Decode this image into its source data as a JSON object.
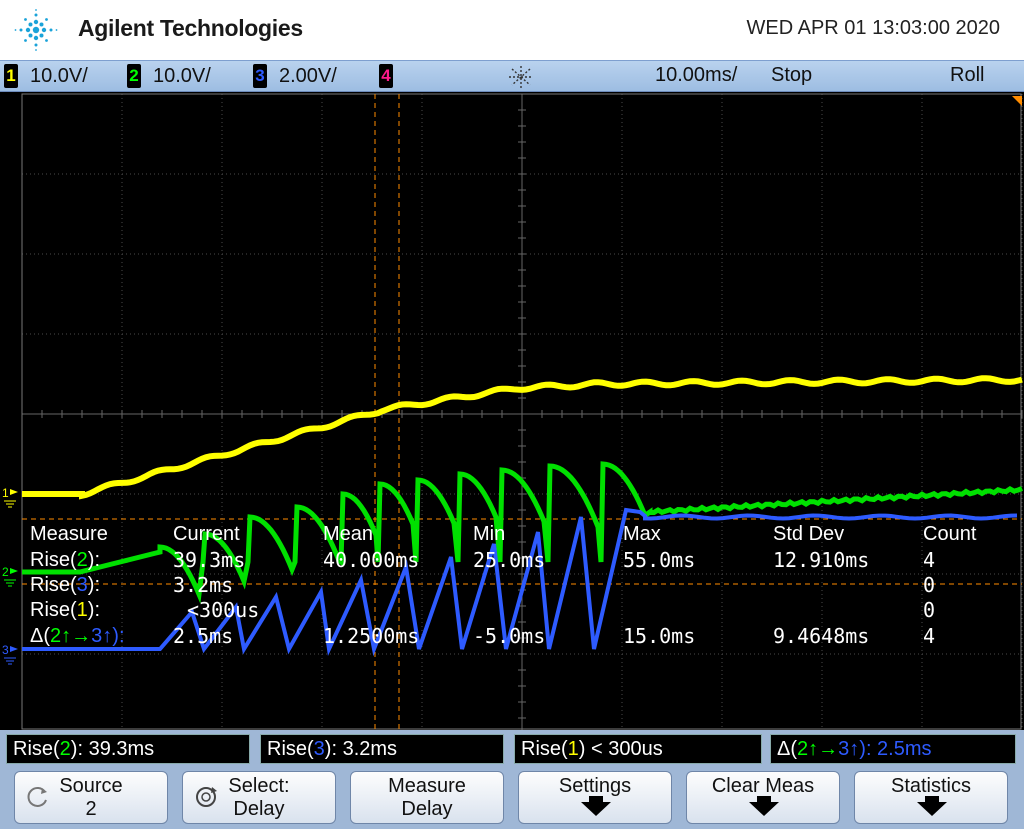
{
  "header": {
    "brand": "Agilent Technologies",
    "datetime": "WED APR 01 13:03:00 2020"
  },
  "status_bar": {
    "channels": [
      {
        "num": "1",
        "scale": "10.0V/",
        "color": "#ffff00"
      },
      {
        "num": "2",
        "scale": "10.0V/",
        "color": "#00ff00"
      },
      {
        "num": "3",
        "scale": "2.00V/",
        "color": "#2e5bff"
      },
      {
        "num": "4",
        "scale": "",
        "color": "#ff1a8c"
      }
    ],
    "timebase": "10.00ms/",
    "run_state": "Stop",
    "mode": "Roll"
  },
  "measurements": {
    "headers": [
      "Measure",
      "Current",
      "Mean",
      "Min",
      "Max",
      "Std Dev",
      "Count"
    ],
    "rows": [
      {
        "label_pre": "Rise(",
        "ch": "2",
        "label_post": "):",
        "current": "39.3ms",
        "mean": "40.000ms",
        "min": "25.0ms",
        "max": "55.0ms",
        "std_dev": "12.910ms",
        "count": "4"
      },
      {
        "label_pre": "Rise(",
        "ch": "3",
        "label_post": "):",
        "current": "3.2ms",
        "mean": "",
        "min": "",
        "max": "",
        "std_dev": "",
        "count": "0"
      },
      {
        "label_pre": "Rise(",
        "ch": "1",
        "label_post": "):",
        "current": "<300us",
        "mean": "",
        "min": "",
        "max": "",
        "std_dev": "",
        "count": "0"
      },
      {
        "label_pre": "Δ(",
        "ch": "2",
        "label_mid": "↑→",
        "ch_b": "3",
        "label_post": "↑):",
        "current": "2.5ms",
        "mean": "1.2500ms",
        "min": "-5.0ms",
        "max": "15.0ms",
        "std_dev": "9.4648ms",
        "count": "4"
      }
    ]
  },
  "ground_markers": {
    "ch1": "1",
    "ch2": "2",
    "ch3": "3"
  },
  "readouts": {
    "r1": {
      "pre": "Rise(",
      "ch": "2",
      "post": "): 39.3ms"
    },
    "r2": {
      "pre": "Rise(",
      "ch": "3",
      "post": "): 3.2ms"
    },
    "r3": {
      "pre": "Rise(",
      "ch": "1",
      "post": ") < 300us"
    },
    "r4": {
      "pre": "Δ(",
      "ch": "2",
      "mid": "↑→",
      "ch_b": "3",
      "post": "↑): 2.5ms"
    }
  },
  "softkeys": {
    "source": {
      "line1": "Source",
      "line2": "2"
    },
    "select": {
      "line1": "Select:",
      "line2": "Delay"
    },
    "measure": {
      "line1": "Measure",
      "line2": "Delay"
    },
    "settings": {
      "line1": "Settings"
    },
    "clear": {
      "line1": "Clear Meas"
    },
    "statistics": {
      "line1": "Statistics"
    }
  }
}
